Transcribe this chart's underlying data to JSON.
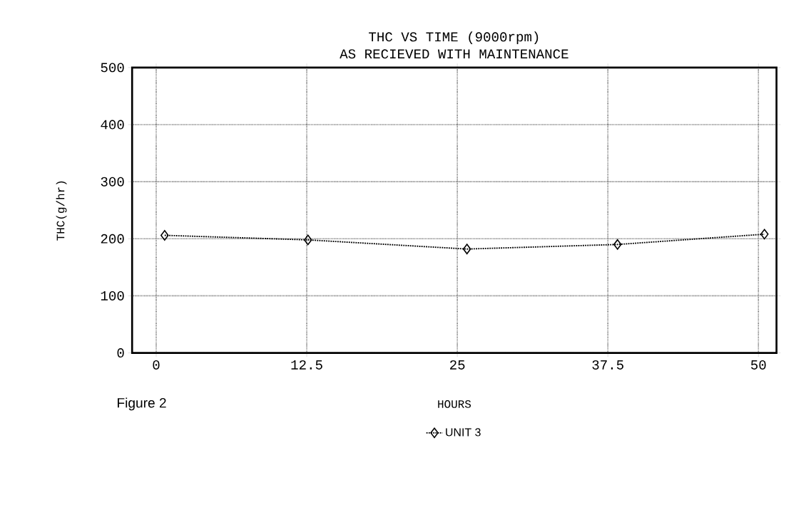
{
  "chart_data": {
    "type": "line",
    "title": "THC VS TIME (9000rpm)",
    "subtitle": "AS RECIEVED WITH MAINTENANCE",
    "xlabel": "HOURS",
    "ylabel": "THC(g/hr)",
    "annotations": [
      "Figure 2"
    ],
    "x": [
      0.7,
      12.6,
      25.8,
      38.3,
      50.5
    ],
    "series": [
      {
        "name": "UNIT 3",
        "color": "#000000",
        "values": [
          206,
          198,
          182,
          190,
          208
        ]
      }
    ],
    "xlim": [
      -2,
      51.5
    ],
    "xticks": [
      0,
      12.5,
      25,
      37.5,
      50
    ],
    "ylim": [
      0,
      500
    ],
    "yticks": [
      0,
      100,
      200,
      300,
      400,
      500
    ],
    "grid": true,
    "legend": "bottom",
    "marker": "diamond",
    "line_style": "dotted"
  }
}
